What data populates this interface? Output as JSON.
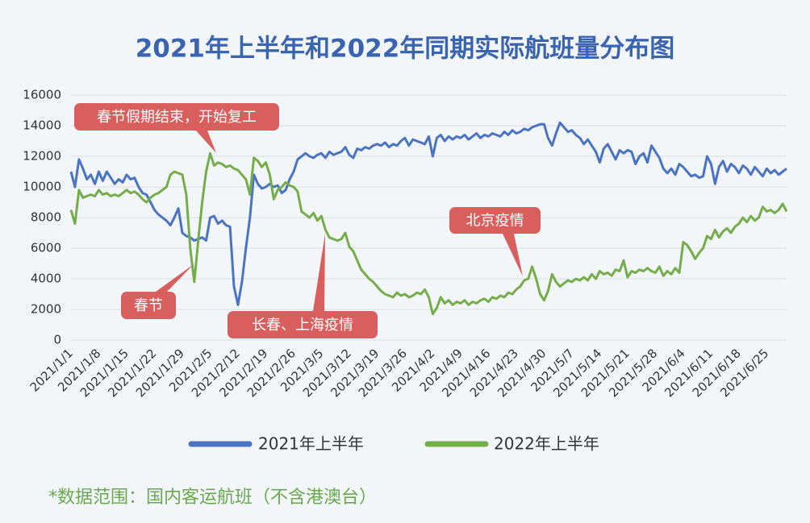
{
  "chart_data": {
    "type": "line",
    "title": "2021年上半年和2022年同期实际航班量分布图",
    "footnote": "*数据范围：国内客运航班（不含港澳台）",
    "categories": [
      "2021/1/1",
      null,
      null,
      null,
      null,
      null,
      null,
      "2021/1/8",
      null,
      null,
      null,
      null,
      null,
      null,
      "2021/1/15",
      null,
      null,
      null,
      null,
      null,
      null,
      "2021/1/22",
      null,
      null,
      null,
      null,
      null,
      null,
      "2021/1/29",
      null,
      null,
      null,
      null,
      null,
      null,
      "2021/2/5",
      null,
      null,
      null,
      null,
      null,
      null,
      "2021/2/12",
      null,
      null,
      null,
      null,
      null,
      null,
      "2021/2/19",
      null,
      null,
      null,
      null,
      null,
      null,
      "2021/2/26",
      null,
      null,
      null,
      null,
      null,
      null,
      "2021/3/5",
      null,
      null,
      null,
      null,
      null,
      null,
      "2021/3/12",
      null,
      null,
      null,
      null,
      null,
      null,
      "2021/3/19",
      null,
      null,
      null,
      null,
      null,
      null,
      "2021/3/26",
      null,
      null,
      null,
      null,
      null,
      null,
      "2021/4/2",
      null,
      null,
      null,
      null,
      null,
      null,
      "2021/4/9",
      null,
      null,
      null,
      null,
      null,
      null,
      "2021/4/16",
      null,
      null,
      null,
      null,
      null,
      null,
      "2021/4/23",
      null,
      null,
      null,
      null,
      null,
      null,
      "2021/4/30",
      null,
      null,
      null,
      null,
      null,
      null,
      "2021/5/7",
      null,
      null,
      null,
      null,
      null,
      null,
      "2021/5/14",
      null,
      null,
      null,
      null,
      null,
      null,
      "2021/5/21",
      null,
      null,
      null,
      null,
      null,
      null,
      "2021/5/28",
      null,
      null,
      null,
      null,
      null,
      null,
      "2021/6/4",
      null,
      null,
      null,
      null,
      null,
      null,
      "2021/6/11",
      null,
      null,
      null,
      null,
      null,
      null,
      "2021/6/18",
      null,
      null,
      null,
      null,
      null,
      null,
      "2021/6/25",
      null,
      null,
      null,
      null,
      null
    ],
    "series": [
      {
        "name": "2021年上半年",
        "color": "#4a74c2",
        "values": [
          11000,
          10000,
          11800,
          11200,
          10500,
          10800,
          10200,
          11000,
          10400,
          11000,
          10600,
          10200,
          10500,
          10300,
          10800,
          10500,
          10600,
          10000,
          9600,
          9500,
          9000,
          8500,
          8200,
          8000,
          7800,
          7500,
          8000,
          8600,
          7000,
          6800,
          6700,
          6500,
          6600,
          6700,
          6500,
          8000,
          8100,
          7600,
          7800,
          7500,
          7400,
          3500,
          2300,
          3800,
          6000,
          8000,
          10800,
          10200,
          9900,
          10000,
          10200,
          10000,
          10100,
          9600,
          9800,
          10500,
          11000,
          11800,
          12000,
          12200,
          12000,
          11900,
          12100,
          12200,
          11900,
          12300,
          12100,
          12200,
          12300,
          12600,
          12100,
          11900,
          12500,
          12400,
          12600,
          12500,
          12700,
          12800,
          12700,
          12900,
          12600,
          12800,
          12700,
          13000,
          13200,
          12700,
          13100,
          13000,
          12900,
          12800,
          13300,
          12000,
          13200,
          13400,
          13000,
          13300,
          13100,
          13300,
          13200,
          13400,
          13100,
          13300,
          13500,
          13200,
          13400,
          13300,
          13500,
          13400,
          13300,
          13600,
          13400,
          13700,
          13500,
          13600,
          13800,
          13700,
          13900,
          14000,
          14100,
          14100,
          13200,
          12700,
          13500,
          14200,
          13900,
          13600,
          13700,
          13400,
          13200,
          12800,
          13100,
          12700,
          12300,
          11600,
          12500,
          12800,
          12300,
          11800,
          12400,
          12200,
          12400,
          12300,
          11500,
          12000,
          12200,
          11600,
          12700,
          12300,
          11900,
          11200,
          10900,
          11200,
          10800,
          11500,
          11300,
          11000,
          10700,
          10800,
          10600,
          10700,
          12000,
          11500,
          10200,
          11300,
          11700,
          11000,
          11500,
          11300,
          10900,
          11400,
          11200,
          10800,
          11300,
          11000,
          10700,
          11200,
          10900,
          11100,
          10800,
          11000,
          11200
        ]
      },
      {
        "name": "2022年上半年",
        "color": "#74ad4a",
        "values": [
          8500,
          7600,
          9800,
          9300,
          9400,
          9500,
          9400,
          9800,
          9500,
          9600,
          9400,
          9500,
          9400,
          9600,
          9800,
          9600,
          9700,
          9500,
          9200,
          9000,
          9300,
          9500,
          9600,
          9800,
          10000,
          10800,
          11000,
          10900,
          10800,
          9500,
          6000,
          3800,
          6500,
          9000,
          11000,
          12200,
          11400,
          11600,
          11500,
          11300,
          11400,
          11200,
          11100,
          10800,
          10500,
          9500,
          11900,
          11700,
          11300,
          11600,
          10800,
          9200,
          9800,
          10000,
          10300,
          10100,
          10000,
          9700,
          8400,
          8200,
          8000,
          8300,
          7800,
          8100,
          7200,
          6700,
          6600,
          6500,
          6600,
          7000,
          6100,
          5800,
          5200,
          4600,
          4300,
          4000,
          3800,
          3500,
          3200,
          3000,
          2900,
          2800,
          3100,
          2900,
          3000,
          2800,
          2900,
          3100,
          3000,
          3300,
          2800,
          1700,
          2100,
          2800,
          2400,
          2600,
          2300,
          2500,
          2400,
          2600,
          2300,
          2500,
          2400,
          2600,
          2700,
          2500,
          2800,
          2700,
          2900,
          2800,
          3100,
          3000,
          3300,
          3500,
          3900,
          4000,
          4800,
          4000,
          3000,
          2600,
          3200,
          4300,
          3800,
          3500,
          3700,
          3900,
          3800,
          4000,
          3900,
          4100,
          3900,
          4300,
          4000,
          4500,
          4300,
          4400,
          4200,
          4600,
          4500,
          5200,
          4100,
          4500,
          4400,
          4600,
          4500,
          4700,
          4500,
          4400,
          4800,
          4200,
          4500,
          4300,
          4700,
          4400,
          6400,
          6200,
          5800,
          5300,
          5700,
          6000,
          6800,
          6600,
          7200,
          6700,
          7100,
          7300,
          7000,
          7400,
          7600,
          8000,
          7700,
          8100,
          7800,
          8000,
          8700,
          8400,
          8500,
          8300,
          8500,
          8900,
          8400
        ]
      }
    ],
    "ylim": [
      0,
      16000
    ],
    "yticks": [
      0,
      2000,
      4000,
      6000,
      8000,
      10000,
      12000,
      14000,
      16000
    ],
    "grid": true,
    "annotations": [
      "春节假期结束，开始复工",
      "春节",
      "长春、上海疫情",
      "北京疫情"
    ]
  }
}
